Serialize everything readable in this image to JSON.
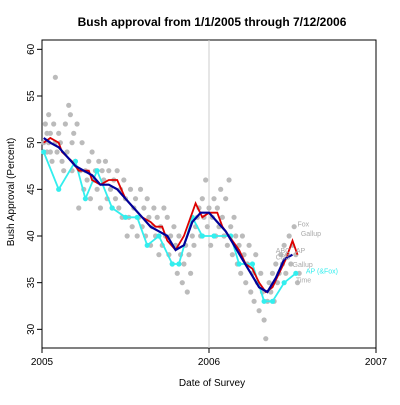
{
  "chart_data": {
    "type": "scatter",
    "title": "Bush approval from 1/1/2005 through 7/12/2006",
    "xlabel": "Date of Survey",
    "ylabel": "Bush Approval (Percent)",
    "xlim": [
      2005.0,
      2007.0
    ],
    "ylim": [
      28.0,
      61.0
    ],
    "x_ticks": [
      2005,
      2006,
      2007
    ],
    "x_tick_labels": [
      "2005",
      "2006",
      "2007"
    ],
    "y_ticks": [
      30,
      35,
      40,
      45,
      50,
      55,
      60
    ],
    "y_tick_labels": [
      "30",
      "35",
      "40",
      "45",
      "50",
      "55",
      "60"
    ],
    "reference_line_x": 2006.0,
    "colors": {
      "polls": "#bbbbbb",
      "trend_red": "#dd0000",
      "trend_blue": "#000099",
      "ap_ipsos": "#33eeee",
      "reference_line": "#cccccc",
      "annotation": "#aaaaaa"
    },
    "polls": [
      [
        2005.01,
        50
      ],
      [
        2005.02,
        52
      ],
      [
        2005.03,
        49
      ],
      [
        2005.03,
        51
      ],
      [
        2005.04,
        53
      ],
      [
        2005.04,
        50
      ],
      [
        2005.05,
        51
      ],
      [
        2005.05,
        49
      ],
      [
        2005.06,
        48
      ],
      [
        2005.07,
        52
      ],
      [
        2005.08,
        50
      ],
      [
        2005.08,
        57
      ],
      [
        2005.09,
        49
      ],
      [
        2005.1,
        51
      ],
      [
        2005.11,
        50
      ],
      [
        2005.12,
        48
      ],
      [
        2005.13,
        47
      ],
      [
        2005.14,
        52
      ],
      [
        2005.15,
        49
      ],
      [
        2005.16,
        54
      ],
      [
        2005.17,
        53
      ],
      [
        2005.18,
        50
      ],
      [
        2005.18,
        47
      ],
      [
        2005.19,
        51
      ],
      [
        2005.2,
        48
      ],
      [
        2005.21,
        52
      ],
      [
        2005.22,
        43
      ],
      [
        2005.23,
        47
      ],
      [
        2005.24,
        50
      ],
      [
        2005.25,
        45
      ],
      [
        2005.26,
        47
      ],
      [
        2005.27,
        46
      ],
      [
        2005.28,
        48
      ],
      [
        2005.29,
        44
      ],
      [
        2005.3,
        49
      ],
      [
        2005.31,
        46
      ],
      [
        2005.32,
        47
      ],
      [
        2005.33,
        45
      ],
      [
        2005.34,
        48
      ],
      [
        2005.35,
        43
      ],
      [
        2005.36,
        47
      ],
      [
        2005.37,
        46
      ],
      [
        2005.38,
        48
      ],
      [
        2005.39,
        44
      ],
      [
        2005.4,
        47
      ],
      [
        2005.41,
        45
      ],
      [
        2005.42,
        43
      ],
      [
        2005.43,
        46
      ],
      [
        2005.44,
        44
      ],
      [
        2005.45,
        47
      ],
      [
        2005.46,
        43
      ],
      [
        2005.47,
        45
      ],
      [
        2005.48,
        42
      ],
      [
        2005.49,
        46
      ],
      [
        2005.5,
        44
      ],
      [
        2005.51,
        40
      ],
      [
        2005.52,
        42
      ],
      [
        2005.53,
        45
      ],
      [
        2005.54,
        41
      ],
      [
        2005.55,
        43
      ],
      [
        2005.56,
        44
      ],
      [
        2005.57,
        40
      ],
      [
        2005.58,
        42
      ],
      [
        2005.59,
        45
      ],
      [
        2005.6,
        41
      ],
      [
        2005.61,
        43
      ],
      [
        2005.62,
        40
      ],
      [
        2005.63,
        44
      ],
      [
        2005.64,
        42
      ],
      [
        2005.65,
        39
      ],
      [
        2005.66,
        41
      ],
      [
        2005.67,
        43
      ],
      [
        2005.68,
        40
      ],
      [
        2005.69,
        42
      ],
      [
        2005.7,
        38
      ],
      [
        2005.71,
        41
      ],
      [
        2005.72,
        39
      ],
      [
        2005.73,
        43
      ],
      [
        2005.74,
        40
      ],
      [
        2005.75,
        42
      ],
      [
        2005.76,
        38
      ],
      [
        2005.77,
        40
      ],
      [
        2005.78,
        37
      ],
      [
        2005.79,
        41
      ],
      [
        2005.8,
        39
      ],
      [
        2005.81,
        36
      ],
      [
        2005.82,
        40
      ],
      [
        2005.83,
        38
      ],
      [
        2005.84,
        35
      ],
      [
        2005.85,
        37
      ],
      [
        2005.86,
        39
      ],
      [
        2005.87,
        34
      ],
      [
        2005.88,
        38
      ],
      [
        2005.89,
        36
      ],
      [
        2005.9,
        40
      ],
      [
        2005.91,
        39
      ],
      [
        2005.92,
        41
      ],
      [
        2005.93,
        42
      ],
      [
        2005.94,
        43
      ],
      [
        2005.95,
        40
      ],
      [
        2005.96,
        44
      ],
      [
        2005.97,
        42
      ],
      [
        2005.98,
        46
      ],
      [
        2005.99,
        41
      ],
      [
        2006.0,
        43
      ],
      [
        2006.01,
        39
      ],
      [
        2006.02,
        42
      ],
      [
        2006.03,
        44
      ],
      [
        2006.04,
        40
      ],
      [
        2006.05,
        43
      ],
      [
        2006.06,
        41
      ],
      [
        2006.07,
        45
      ],
      [
        2006.08,
        42
      ],
      [
        2006.09,
        40
      ],
      [
        2006.1,
        44
      ],
      [
        2006.11,
        39
      ],
      [
        2006.12,
        46
      ],
      [
        2006.13,
        41
      ],
      [
        2006.14,
        38
      ],
      [
        2006.15,
        42
      ],
      [
        2006.16,
        40
      ],
      [
        2006.17,
        37
      ],
      [
        2006.18,
        39
      ],
      [
        2006.19,
        36
      ],
      [
        2006.2,
        40
      ],
      [
        2006.21,
        38
      ],
      [
        2006.22,
        35
      ],
      [
        2006.23,
        37
      ],
      [
        2006.24,
        39
      ],
      [
        2006.25,
        34
      ],
      [
        2006.26,
        36
      ],
      [
        2006.27,
        33
      ],
      [
        2006.28,
        38
      ],
      [
        2006.29,
        35
      ],
      [
        2006.3,
        32
      ],
      [
        2006.31,
        36
      ],
      [
        2006.32,
        34
      ],
      [
        2006.33,
        31
      ],
      [
        2006.34,
        29
      ],
      [
        2006.35,
        33
      ],
      [
        2006.36,
        35
      ],
      [
        2006.37,
        34
      ],
      [
        2006.38,
        36
      ],
      [
        2006.39,
        33
      ],
      [
        2006.4,
        37
      ],
      [
        2006.41,
        35
      ],
      [
        2006.42,
        36
      ],
      [
        2006.43,
        38
      ],
      [
        2006.44,
        37
      ],
      [
        2006.45,
        39
      ],
      [
        2006.46,
        36
      ],
      [
        2006.47,
        38
      ],
      [
        2006.48,
        40
      ],
      [
        2006.49,
        37
      ],
      [
        2006.5,
        39
      ],
      [
        2006.51,
        41
      ],
      [
        2006.52,
        38
      ],
      [
        2006.53,
        35
      ],
      [
        2006.54,
        36
      ]
    ],
    "series": [
      {
        "values": [
          [
            2005.01,
            50.5
          ],
          [
            2005.05,
            50.0
          ],
          [
            2005.1,
            49.5
          ],
          [
            2005.15,
            48.5
          ],
          [
            2005.2,
            47.5
          ],
          [
            2005.25,
            47.0
          ],
          [
            2005.3,
            46.5
          ],
          [
            2005.35,
            45.5
          ],
          [
            2005.4,
            45.5
          ],
          [
            2005.45,
            45.0
          ],
          [
            2005.5,
            44.0
          ],
          [
            2005.55,
            43.0
          ],
          [
            2005.6,
            42.0
          ],
          [
            2005.65,
            41.0
          ],
          [
            2005.7,
            40.5
          ],
          [
            2005.75,
            40.0
          ],
          [
            2005.8,
            38.5
          ],
          [
            2005.85,
            39.0
          ],
          [
            2005.9,
            41.5
          ],
          [
            2005.95,
            42.5
          ],
          [
            2006.0,
            42.5
          ],
          [
            2006.05,
            41.5
          ],
          [
            2006.1,
            40.5
          ],
          [
            2006.15,
            39.0
          ],
          [
            2006.2,
            37.5
          ],
          [
            2006.25,
            36.0
          ],
          [
            2006.3,
            34.5
          ],
          [
            2006.35,
            34.0
          ],
          [
            2006.4,
            35.5
          ],
          [
            2006.45,
            37.5
          ],
          [
            2006.5,
            38.0
          ]
        ]
      },
      {
        "values": [
          [
            2005.01,
            50.0
          ],
          [
            2005.05,
            50.5
          ],
          [
            2005.1,
            50.0
          ],
          [
            2005.12,
            49.0
          ],
          [
            2005.18,
            48.0
          ],
          [
            2005.22,
            47.0
          ],
          [
            2005.28,
            47.0
          ],
          [
            2005.3,
            46.0
          ],
          [
            2005.35,
            45.5
          ],
          [
            2005.4,
            46.0
          ],
          [
            2005.45,
            46.0
          ],
          [
            2005.5,
            44.0
          ],
          [
            2005.55,
            43.0
          ],
          [
            2005.6,
            42.0
          ],
          [
            2005.65,
            41.5
          ],
          [
            2005.68,
            41.0
          ],
          [
            2005.72,
            41.0
          ],
          [
            2005.75,
            39.5
          ],
          [
            2005.8,
            38.5
          ],
          [
            2005.85,
            40.0
          ],
          [
            2005.92,
            43.5
          ],
          [
            2005.96,
            42.0
          ],
          [
            2006.0,
            42.5
          ],
          [
            2006.05,
            42.5
          ],
          [
            2006.08,
            41.0
          ],
          [
            2006.12,
            40.0
          ],
          [
            2006.18,
            38.5
          ],
          [
            2006.22,
            37.0
          ],
          [
            2006.26,
            36.5
          ],
          [
            2006.3,
            35.0
          ],
          [
            2006.34,
            34.0
          ],
          [
            2006.38,
            34.5
          ],
          [
            2006.42,
            36.0
          ],
          [
            2006.46,
            37.5
          ],
          [
            2006.5,
            39.5
          ],
          [
            2006.53,
            38.0
          ]
        ]
      },
      {
        "values": [
          [
            2005.01,
            49
          ],
          [
            2005.1,
            45
          ],
          [
            2005.2,
            48
          ],
          [
            2005.26,
            44
          ],
          [
            2005.33,
            47
          ],
          [
            2005.42,
            43
          ],
          [
            2005.5,
            42
          ],
          [
            2005.57,
            42
          ],
          [
            2005.63,
            39
          ],
          [
            2005.7,
            40
          ],
          [
            2005.78,
            37
          ],
          [
            2005.82,
            37
          ],
          [
            2005.9,
            42
          ],
          [
            2005.96,
            40
          ],
          [
            2006.03,
            40
          ],
          [
            2006.13,
            40
          ],
          [
            2006.18,
            37
          ],
          [
            2006.26,
            37
          ],
          [
            2006.33,
            33
          ],
          [
            2006.38,
            33
          ],
          [
            2006.45,
            35
          ],
          [
            2006.52,
            36
          ]
        ]
      }
    ],
    "annotations": [
      {
        "text": "Fox",
        "x": 2006.53,
        "y": 41.0
      },
      {
        "text": "Gallup",
        "x": 2006.55,
        "y": 40.0
      },
      {
        "text": "ABC",
        "x": 2006.4,
        "y": 38.2
      },
      {
        "text": "AP",
        "x": 2006.52,
        "y": 38.2
      },
      {
        "text": "CBS",
        "x": 2006.4,
        "y": 37.5
      },
      {
        "text": "Gallup",
        "x": 2006.5,
        "y": 36.7
      },
      {
        "text": "AP (&Fox)",
        "x": 2006.58,
        "y": 36.0
      },
      {
        "text": "Time",
        "x": 2006.52,
        "y": 35.0
      }
    ]
  }
}
